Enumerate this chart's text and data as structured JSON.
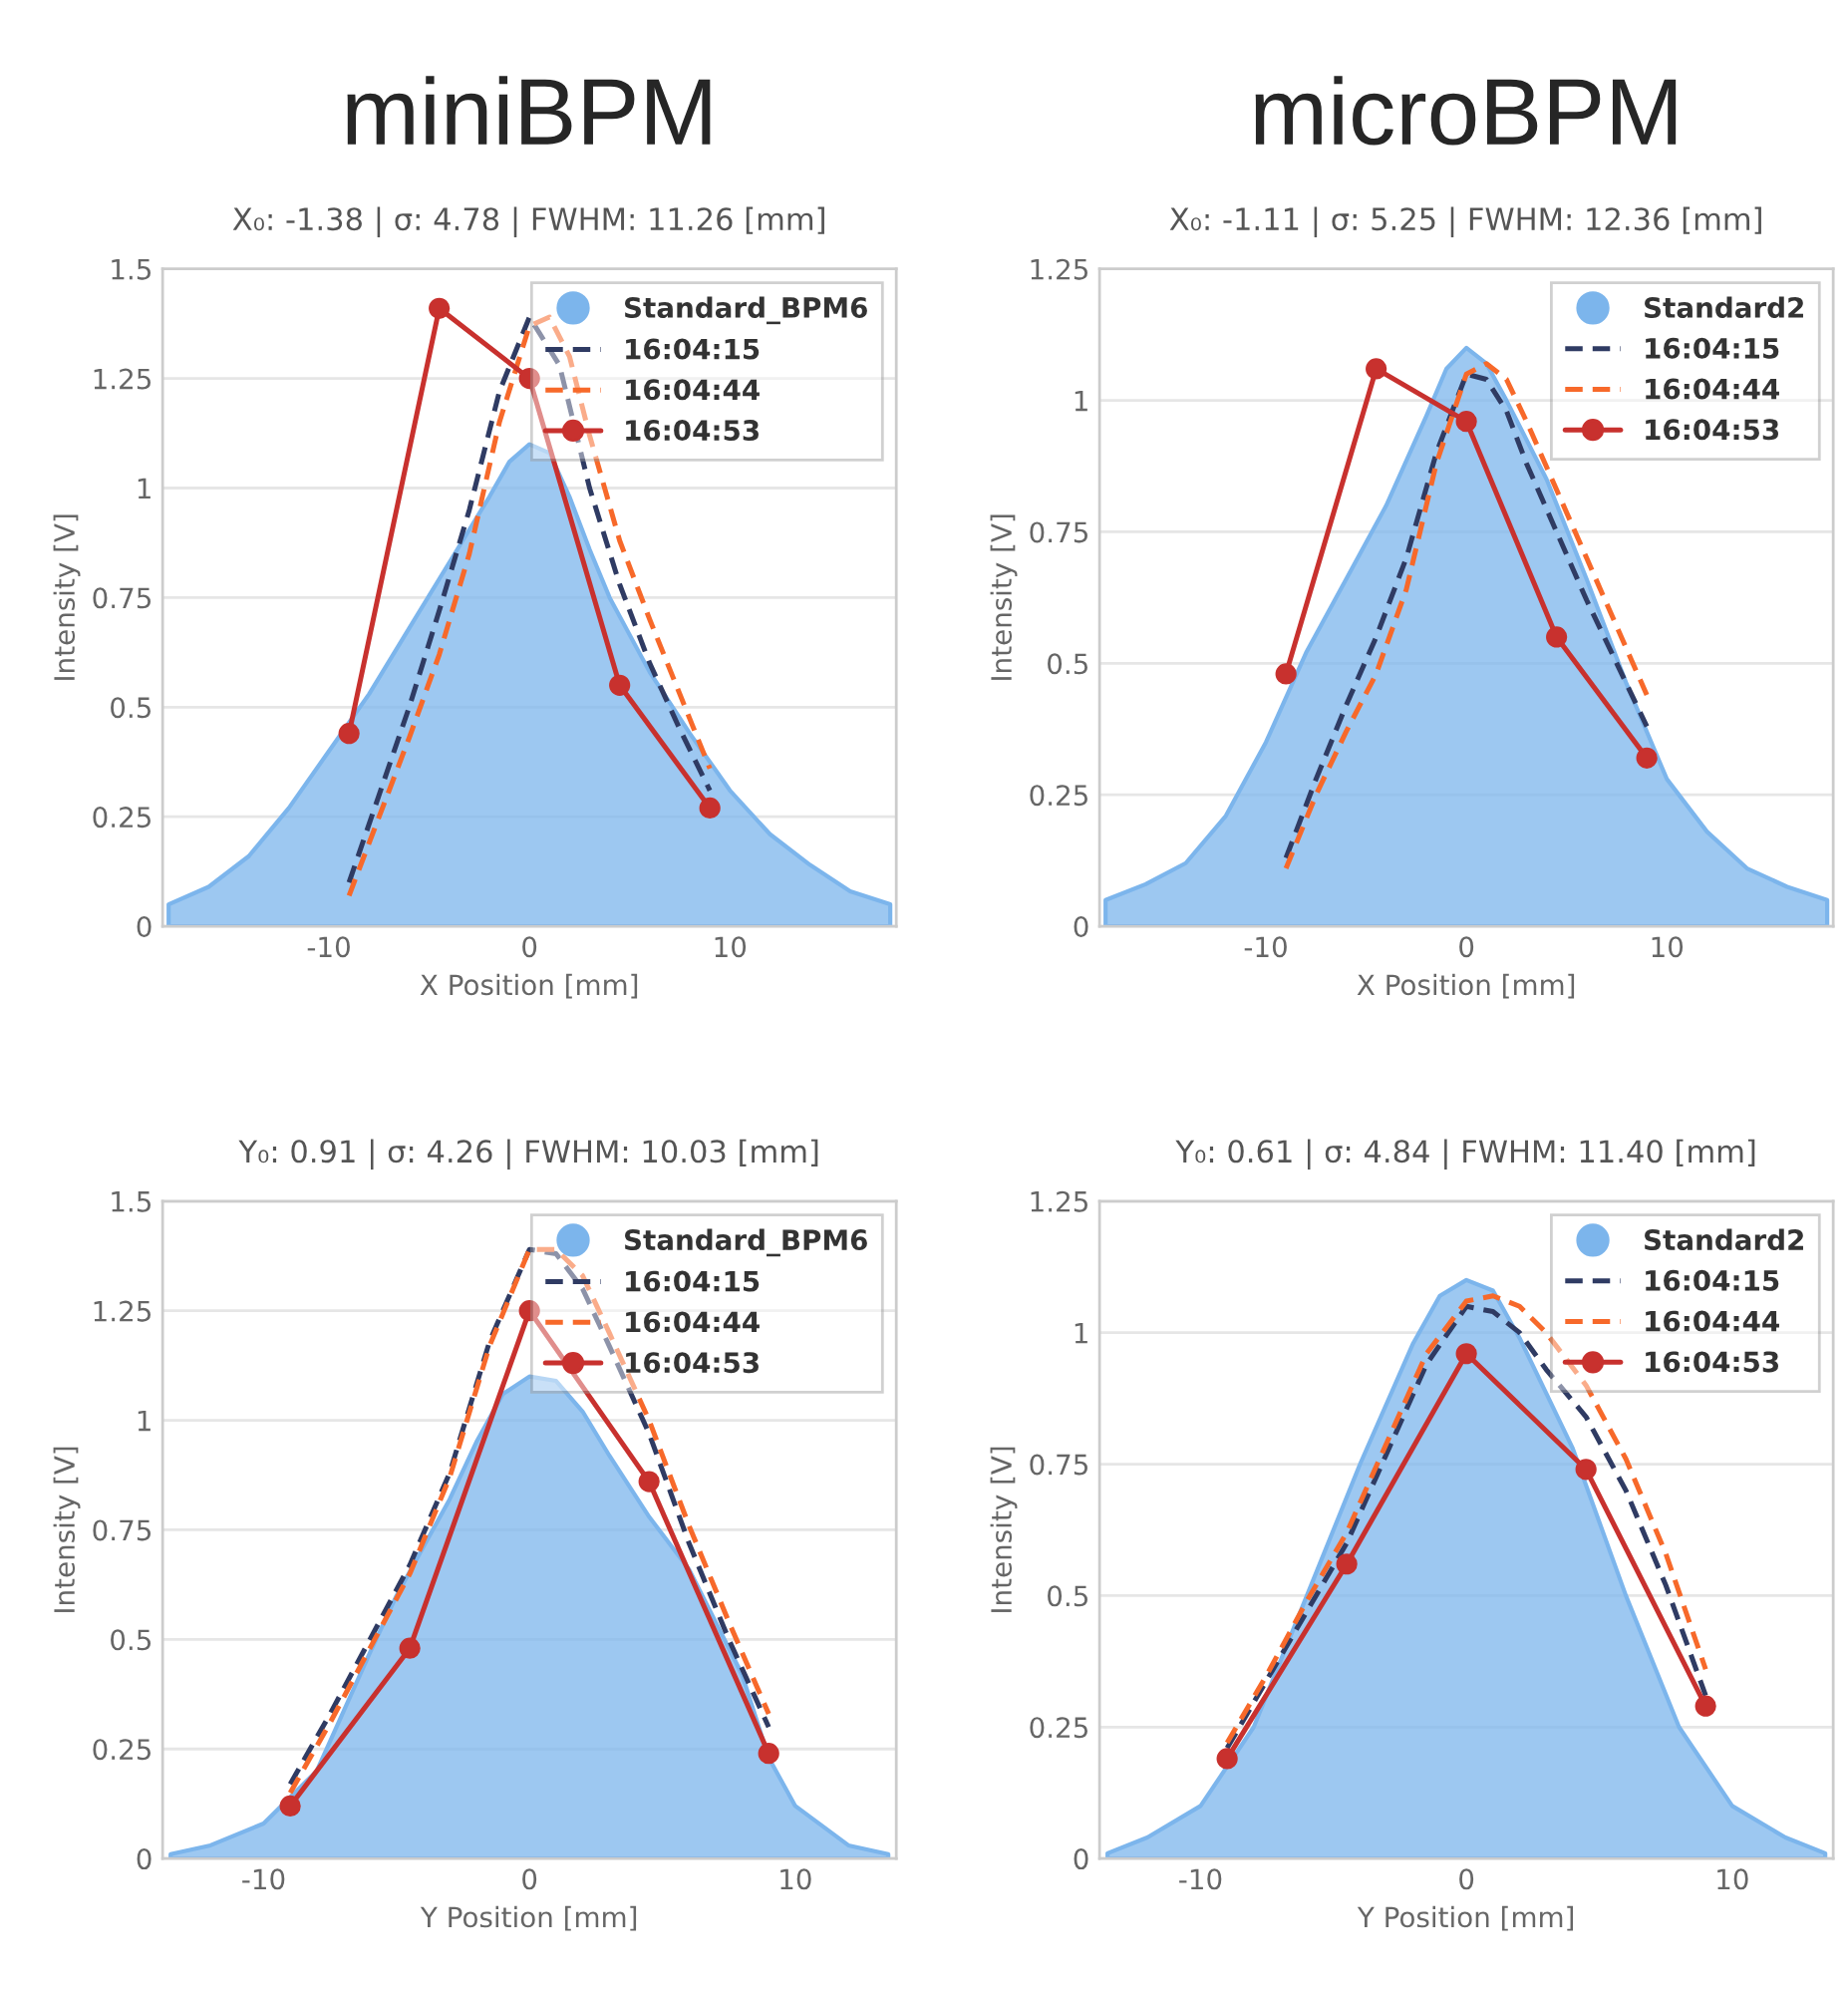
{
  "chart_data": [
    {
      "type": "line",
      "title": "miniBPM",
      "subtitle": "X₀: -1.38 | σ: 4.78 | FWHM: 11.26 [mm]",
      "xlabel": "X Position [mm]",
      "ylabel": "Intensity [V]",
      "xlim": [
        -18.3,
        18.3
      ],
      "xticks": [
        -10,
        0,
        10
      ],
      "ylim": [
        0,
        1.5
      ],
      "yticks": [
        0,
        0.25,
        0.5,
        0.75,
        1,
        1.25,
        1.5
      ],
      "grid": "y",
      "legend": "top right",
      "series": [
        {
          "name": "Standard_BPM6",
          "type": "area",
          "color": "#7cb5ec",
          "x": [
            -18,
            -16,
            -14,
            -12,
            -10,
            -8,
            -6,
            -4,
            -2,
            -1,
            0,
            1,
            2,
            3,
            4,
            6,
            8,
            10,
            12,
            14,
            16,
            18
          ],
          "values": [
            0.05,
            0.09,
            0.16,
            0.27,
            0.4,
            0.53,
            0.68,
            0.83,
            0.98,
            1.06,
            1.1,
            1.08,
            0.98,
            0.86,
            0.75,
            0.58,
            0.44,
            0.31,
            0.21,
            0.14,
            0.08,
            0.05
          ]
        },
        {
          "name": "16:04:15",
          "color": "#2f3b63",
          "line_style": "dashed",
          "x": [
            -9,
            -7.5,
            -6,
            -4.5,
            -3,
            -1.5,
            0,
            1.5,
            3,
            4.5,
            6,
            7.5,
            9
          ],
          "values": [
            0.1,
            0.3,
            0.5,
            0.72,
            0.95,
            1.22,
            1.39,
            1.28,
            1.0,
            0.78,
            0.6,
            0.45,
            0.31
          ]
        },
        {
          "name": "16:04:44",
          "color": "#f7692a",
          "line_style": "dashed",
          "x": [
            -9,
            -7.5,
            -6,
            -4.5,
            -3,
            -1.5,
            0,
            1,
            2,
            3,
            4.5,
            6,
            7.5,
            9
          ],
          "values": [
            0.07,
            0.25,
            0.43,
            0.62,
            0.85,
            1.15,
            1.37,
            1.39,
            1.3,
            1.12,
            0.88,
            0.7,
            0.53,
            0.36
          ]
        },
        {
          "name": "16:04:53",
          "color": "#c8312e",
          "line_style": "solid",
          "marker": "circle",
          "x": [
            -9,
            -4.5,
            0,
            4.5,
            9
          ],
          "values": [
            0.44,
            1.41,
            1.25,
            0.55,
            0.27
          ]
        }
      ]
    },
    {
      "type": "line",
      "title": "microBPM",
      "subtitle": "X₀: -1.11 | σ: 5.25 | FWHM: 12.36 [mm]",
      "xlabel": "X Position [mm]",
      "ylabel": "Intensity [V]",
      "xlim": [
        -18.3,
        18.3
      ],
      "xticks": [
        -10,
        0,
        10
      ],
      "ylim": [
        0,
        1.25
      ],
      "yticks": [
        0,
        0.25,
        0.5,
        0.75,
        1,
        1.25
      ],
      "grid": "y",
      "legend": "top right",
      "series": [
        {
          "name": "Standard2",
          "type": "area",
          "color": "#7cb5ec",
          "x": [
            -18,
            -16,
            -14,
            -12,
            -10,
            -8,
            -6,
            -4,
            -2,
            -1,
            0,
            1,
            2,
            4,
            6,
            8,
            10,
            12,
            14,
            16,
            18
          ],
          "values": [
            0.05,
            0.08,
            0.12,
            0.21,
            0.35,
            0.52,
            0.66,
            0.8,
            0.97,
            1.06,
            1.1,
            1.07,
            1.0,
            0.85,
            0.66,
            0.46,
            0.28,
            0.18,
            0.11,
            0.075,
            0.05
          ]
        },
        {
          "name": "16:04:15",
          "color": "#2f3b63",
          "line_style": "dashed",
          "x": [
            -9,
            -7.5,
            -6,
            -4.5,
            -3,
            -1.5,
            0,
            1,
            2,
            3,
            4.5,
            6,
            7.5,
            9
          ],
          "values": [
            0.13,
            0.28,
            0.42,
            0.55,
            0.7,
            0.9,
            1.05,
            1.04,
            0.98,
            0.88,
            0.75,
            0.62,
            0.5,
            0.38
          ]
        },
        {
          "name": "16:04:44",
          "color": "#f7692a",
          "line_style": "dashed",
          "x": [
            -9,
            -7.5,
            -6,
            -4.5,
            -3,
            -1.5,
            0,
            1,
            2,
            3,
            4.5,
            6,
            7.5,
            9
          ],
          "values": [
            0.11,
            0.25,
            0.37,
            0.48,
            0.64,
            0.88,
            1.05,
            1.07,
            1.04,
            0.96,
            0.83,
            0.7,
            0.57,
            0.44
          ]
        },
        {
          "name": "16:04:53",
          "color": "#c8312e",
          "line_style": "solid",
          "marker": "circle",
          "x": [
            -9,
            -4.5,
            0,
            4.5,
            9
          ],
          "values": [
            0.48,
            1.06,
            0.96,
            0.55,
            0.32
          ]
        }
      ]
    },
    {
      "type": "line",
      "subtitle": "Y₀: 0.91 | σ: 4.26 | FWHM: 10.03 [mm]",
      "xlabel": "Y Position [mm]",
      "ylabel": "Intensity [V]",
      "xlim": [
        -13.8,
        13.8
      ],
      "xticks": [
        -10,
        0,
        10
      ],
      "ylim": [
        0,
        1.5
      ],
      "yticks": [
        0,
        0.25,
        0.5,
        0.75,
        1,
        1.25,
        1.5
      ],
      "grid": "y",
      "legend": "top right",
      "series": [
        {
          "name": "Standard_BPM6",
          "type": "area",
          "color": "#7cb5ec",
          "x": [
            -13.5,
            -12,
            -10,
            -8,
            -6,
            -5,
            -4,
            -3,
            -2,
            -1,
            0,
            1,
            2,
            3,
            4.5,
            6,
            8,
            9,
            10,
            12,
            13.5
          ],
          "values": [
            0.01,
            0.03,
            0.08,
            0.2,
            0.47,
            0.6,
            0.71,
            0.82,
            0.95,
            1.06,
            1.1,
            1.09,
            1.02,
            0.92,
            0.78,
            0.66,
            0.42,
            0.23,
            0.12,
            0.03,
            0.01
          ]
        },
        {
          "name": "16:04:15",
          "color": "#2f3b63",
          "line_style": "dashed",
          "x": [
            -9,
            -7.5,
            -6,
            -4.5,
            -3,
            -1.5,
            0,
            1,
            2,
            3,
            4.5,
            6,
            7.5,
            9
          ],
          "values": [
            0.17,
            0.33,
            0.5,
            0.67,
            0.88,
            1.18,
            1.39,
            1.38,
            1.3,
            1.17,
            0.97,
            0.72,
            0.5,
            0.3
          ]
        },
        {
          "name": "16:04:44",
          "color": "#f7692a",
          "line_style": "dashed",
          "x": [
            -9,
            -7.5,
            -6,
            -4.5,
            -3,
            -1.5,
            0,
            1,
            2,
            3,
            4.5,
            6,
            7.5,
            9
          ],
          "values": [
            0.15,
            0.31,
            0.48,
            0.65,
            0.87,
            1.17,
            1.39,
            1.39,
            1.33,
            1.2,
            1.0,
            0.76,
            0.54,
            0.33
          ]
        },
        {
          "name": "16:04:53",
          "color": "#c8312e",
          "line_style": "solid",
          "marker": "circle",
          "x": [
            -9,
            -4.5,
            0,
            4.5,
            9
          ],
          "values": [
            0.12,
            0.48,
            1.25,
            0.86,
            0.24
          ]
        }
      ]
    },
    {
      "type": "line",
      "subtitle": "Y₀: 0.61 | σ: 4.84 | FWHM: 11.40 [mm]",
      "xlabel": "Y Position [mm]",
      "ylabel": "Intensity [V]",
      "xlim": [
        -13.8,
        13.8
      ],
      "xticks": [
        -10,
        0,
        10
      ],
      "ylim": [
        0,
        1.25
      ],
      "yticks": [
        0,
        0.25,
        0.5,
        0.75,
        1,
        1.25
      ],
      "grid": "y",
      "legend": "top right",
      "series": [
        {
          "name": "Standard2",
          "type": "area",
          "color": "#7cb5ec",
          "x": [
            -13.5,
            -12,
            -10,
            -8,
            -6,
            -4,
            -2,
            -1,
            0,
            1,
            2,
            4,
            6,
            8,
            10,
            12,
            13.5
          ],
          "values": [
            0.01,
            0.04,
            0.1,
            0.25,
            0.5,
            0.75,
            0.98,
            1.07,
            1.1,
            1.08,
            0.99,
            0.78,
            0.5,
            0.25,
            0.1,
            0.04,
            0.01
          ]
        },
        {
          "name": "16:04:15",
          "color": "#2f3b63",
          "line_style": "dashed",
          "x": [
            -9,
            -7.5,
            -6,
            -4.5,
            -3,
            -1.5,
            0,
            1,
            2,
            3,
            4.5,
            6,
            7.5,
            9
          ],
          "values": [
            0.21,
            0.34,
            0.47,
            0.6,
            0.77,
            0.94,
            1.05,
            1.04,
            1.0,
            0.93,
            0.84,
            0.7,
            0.52,
            0.31
          ]
        },
        {
          "name": "16:04:44",
          "color": "#f7692a",
          "line_style": "dashed",
          "x": [
            -9,
            -7.5,
            -6,
            -4.5,
            -3,
            -1.5,
            0,
            1,
            2,
            3,
            4.5,
            6,
            7.5,
            9
          ],
          "values": [
            0.22,
            0.35,
            0.49,
            0.62,
            0.79,
            0.96,
            1.06,
            1.07,
            1.05,
            1.0,
            0.9,
            0.76,
            0.58,
            0.36
          ]
        },
        {
          "name": "16:04:53",
          "color": "#c8312e",
          "line_style": "solid",
          "marker": "circle",
          "x": [
            -9,
            -4.5,
            0,
            4.5,
            9
          ],
          "values": [
            0.19,
            0.56,
            0.96,
            0.74,
            0.29
          ]
        }
      ]
    }
  ]
}
